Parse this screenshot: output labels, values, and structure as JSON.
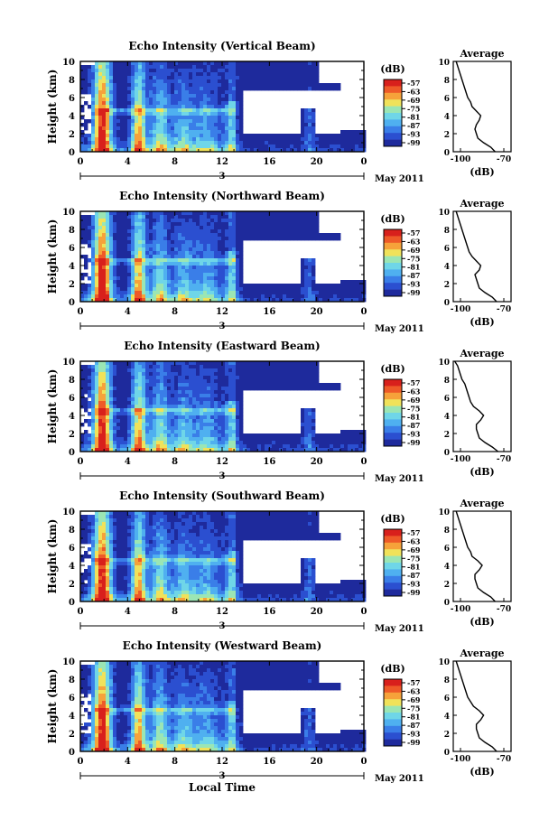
{
  "xlabel": "Local Time",
  "date_label": "May 2011",
  "date_day": "3",
  "chart_data": [
    {
      "type": "heatmap",
      "title": "Echo Intensity (Vertical Beam)",
      "ylabel": "Height (km)",
      "xlim": [
        0,
        24
      ],
      "ylim": [
        0,
        10
      ],
      "xticks": [
        "0",
        "4",
        "8",
        "12",
        "16",
        "20",
        "0"
      ],
      "yticks": [
        "0",
        "2",
        "4",
        "6",
        "8",
        "10"
      ],
      "colorbar": {
        "label": "(dB)",
        "ticks": [
          "-57",
          "-63",
          "-69",
          "-75",
          "-81",
          "-87",
          "-93",
          "-99"
        ]
      },
      "profile": {
        "title": "Average",
        "xlabel": "(dB)",
        "xticks": [
          "-100",
          "-70"
        ],
        "xlim": [
          -105,
          -65
        ],
        "ylim": [
          0,
          10
        ],
        "heights": [
          0,
          0.5,
          1,
          1.5,
          2,
          2.5,
          3,
          3.5,
          4,
          4.5,
          5,
          5.5,
          6,
          6.5,
          7,
          7.5,
          8,
          8.5,
          9,
          9.5,
          10
        ],
        "values": [
          -76,
          -79,
          -84,
          -88,
          -89,
          -90,
          -89,
          -87,
          -86,
          -89,
          -92,
          -93,
          -95,
          -96,
          -97,
          -98,
          -99,
          -100,
          -101,
          -102,
          -103
        ]
      }
    },
    {
      "type": "heatmap",
      "title": "Echo Intensity (Northward Beam)",
      "ylabel": "Height (km)",
      "xlim": [
        0,
        24
      ],
      "ylim": [
        0,
        10
      ],
      "xticks": [
        "0",
        "4",
        "8",
        "12",
        "16",
        "20",
        "0"
      ],
      "yticks": [
        "0",
        "2",
        "4",
        "6",
        "8",
        "10"
      ],
      "colorbar": {
        "label": "(dB)",
        "ticks": [
          "-57",
          "-63",
          "-69",
          "-75",
          "-81",
          "-87",
          "-93",
          "-99"
        ]
      },
      "profile": {
        "title": "Average",
        "xlabel": "(dB)",
        "xticks": [
          "-100",
          "-70"
        ],
        "xlim": [
          -105,
          -65
        ],
        "ylim": [
          0,
          10
        ],
        "heights": [
          0,
          0.5,
          1,
          1.5,
          2,
          2.5,
          3,
          3.5,
          4,
          4.5,
          5,
          5.5,
          6,
          6.5,
          7,
          7.5,
          8,
          8.5,
          9,
          9.5,
          10
        ],
        "values": [
          -75,
          -78,
          -83,
          -87,
          -88,
          -89,
          -90,
          -87,
          -86,
          -89,
          -92,
          -94,
          -95,
          -96,
          -97,
          -98,
          -99,
          -100,
          -101,
          -102,
          -103
        ]
      }
    },
    {
      "type": "heatmap",
      "title": "Echo Intensity (Eastward Beam)",
      "ylabel": "Height (km)",
      "xlim": [
        0,
        24
      ],
      "ylim": [
        0,
        10
      ],
      "xticks": [
        "0",
        "4",
        "8",
        "12",
        "16",
        "20",
        "0"
      ],
      "yticks": [
        "0",
        "2",
        "4",
        "6",
        "8",
        "10"
      ],
      "colorbar": {
        "label": "(dB)",
        "ticks": [
          "-57",
          "-63",
          "-69",
          "-75",
          "-81",
          "-87",
          "-93",
          "-99"
        ]
      },
      "profile": {
        "title": "Average",
        "xlabel": "(dB)",
        "xticks": [
          "-100",
          "-70"
        ],
        "xlim": [
          -105,
          -65
        ],
        "ylim": [
          0,
          10
        ],
        "heights": [
          0,
          0.5,
          1,
          1.5,
          2,
          2.5,
          3,
          3.5,
          4,
          4.5,
          5,
          5.5,
          6,
          6.5,
          7,
          7.5,
          8,
          8.5,
          9,
          9.5,
          10
        ],
        "values": [
          -74,
          -78,
          -83,
          -87,
          -88,
          -89,
          -89,
          -86,
          -84,
          -87,
          -91,
          -93,
          -94,
          -95,
          -96,
          -97,
          -99,
          -100,
          -101,
          -102,
          -104
        ]
      }
    },
    {
      "type": "heatmap",
      "title": "Echo Intensity (Southward Beam)",
      "ylabel": "Height (km)",
      "xlim": [
        0,
        24
      ],
      "ylim": [
        0,
        10
      ],
      "xticks": [
        "0",
        "4",
        "8",
        "12",
        "16",
        "20",
        "0"
      ],
      "yticks": [
        "0",
        "2",
        "4",
        "6",
        "8",
        "10"
      ],
      "colorbar": {
        "label": "(dB)",
        "ticks": [
          "-57",
          "-63",
          "-69",
          "-75",
          "-81",
          "-87",
          "-93",
          "-99"
        ]
      },
      "profile": {
        "title": "Average",
        "xlabel": "(dB)",
        "xticks": [
          "-100",
          "-70"
        ],
        "xlim": [
          -105,
          -65
        ],
        "ylim": [
          0,
          10
        ],
        "heights": [
          0,
          0.5,
          1,
          1.5,
          2,
          2.5,
          3,
          3.5,
          4,
          4.5,
          5,
          5.5,
          6,
          6.5,
          7,
          7.5,
          8,
          8.5,
          9,
          9.5,
          10
        ],
        "values": [
          -76,
          -79,
          -84,
          -88,
          -89,
          -90,
          -90,
          -87,
          -85,
          -88,
          -92,
          -93,
          -95,
          -96,
          -97,
          -98,
          -99,
          -100,
          -101,
          -102,
          -103
        ]
      }
    },
    {
      "type": "heatmap",
      "title": "Echo Intensity (Westward Beam)",
      "ylabel": "Height (km)",
      "xlim": [
        0,
        24
      ],
      "ylim": [
        0,
        10
      ],
      "xticks": [
        "0",
        "4",
        "8",
        "12",
        "16",
        "20",
        "0"
      ],
      "yticks": [
        "0",
        "2",
        "4",
        "6",
        "8",
        "10"
      ],
      "colorbar": {
        "label": "(dB)",
        "ticks": [
          "-57",
          "-63",
          "-69",
          "-75",
          "-81",
          "-87",
          "-93",
          "-99"
        ]
      },
      "profile": {
        "title": "Average",
        "xlabel": "(dB)",
        "xticks": [
          "-100",
          "-70"
        ],
        "xlim": [
          -105,
          -65
        ],
        "ylim": [
          0,
          10
        ],
        "heights": [
          0,
          0.5,
          1,
          1.5,
          2,
          2.5,
          3,
          3.5,
          4,
          4.5,
          5,
          5.5,
          6,
          6.5,
          7,
          7.5,
          8,
          8.5,
          9,
          9.5,
          10
        ],
        "values": [
          -75,
          -78,
          -83,
          -87,
          -88,
          -89,
          -89,
          -86,
          -84,
          -87,
          -91,
          -93,
          -95,
          -96,
          -97,
          -98,
          -99,
          -100,
          -101,
          -102,
          -103
        ]
      }
    }
  ]
}
